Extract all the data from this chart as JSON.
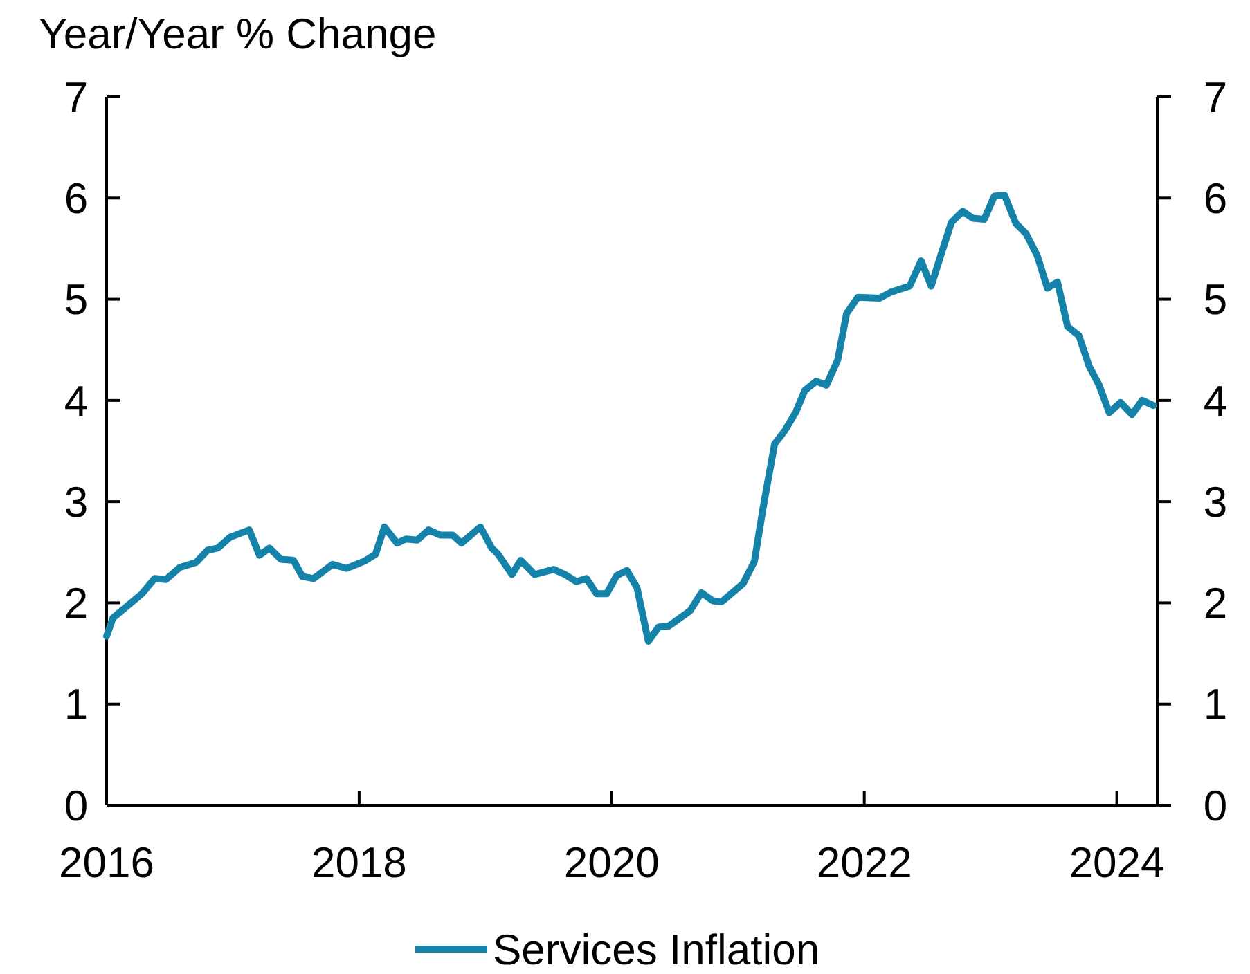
{
  "chart_data": {
    "type": "line",
    "ylabel": "Year/Year % Change",
    "series": [
      {
        "name": "Services Inflation",
        "color": "#1582aa",
        "x": [
          2016.0,
          2016.05,
          2016.28,
          2016.38,
          2016.47,
          2016.58,
          2016.71,
          2016.8,
          2016.88,
          2016.98,
          2017.13,
          2017.21,
          2017.29,
          2017.38,
          2017.48,
          2017.55,
          2017.64,
          2017.79,
          2017.9,
          2018.04,
          2018.13,
          2018.2,
          2018.3,
          2018.37,
          2018.46,
          2018.55,
          2018.64,
          2018.74,
          2018.81,
          2018.96,
          2019.05,
          2019.1,
          2019.21,
          2019.28,
          2019.39,
          2019.54,
          2019.63,
          2019.72,
          2019.8,
          2019.88,
          2019.96,
          2020.04,
          2020.12,
          2020.2,
          2020.29,
          2020.37,
          2020.45,
          2020.62,
          2020.71,
          2020.8,
          2020.87,
          2021.04,
          2021.13,
          2021.2,
          2021.29,
          2021.37,
          2021.46,
          2021.53,
          2021.62,
          2021.7,
          2021.79,
          2021.86,
          2021.95,
          2022.12,
          2022.21,
          2022.36,
          2022.45,
          2022.53,
          2022.61,
          2022.69,
          2022.78,
          2022.86,
          2022.95,
          2023.03,
          2023.11,
          2023.2,
          2023.28,
          2023.37,
          2023.45,
          2023.53,
          2023.61,
          2023.7,
          2023.78,
          2023.86,
          2023.94,
          2024.03,
          2024.12,
          2024.2,
          2024.29
        ],
        "values": [
          1.67,
          1.85,
          2.09,
          2.24,
          2.23,
          2.35,
          2.4,
          2.52,
          2.54,
          2.65,
          2.72,
          2.47,
          2.54,
          2.43,
          2.42,
          2.26,
          2.24,
          2.38,
          2.34,
          2.41,
          2.48,
          2.75,
          2.59,
          2.63,
          2.62,
          2.72,
          2.67,
          2.67,
          2.59,
          2.75,
          2.54,
          2.48,
          2.28,
          2.42,
          2.28,
          2.33,
          2.28,
          2.21,
          2.24,
          2.09,
          2.09,
          2.27,
          2.32,
          2.15,
          1.62,
          1.76,
          1.77,
          1.92,
          2.1,
          2.02,
          2.01,
          2.19,
          2.41,
          2.95,
          3.57,
          3.7,
          3.89,
          4.1,
          4.19,
          4.15,
          4.4,
          4.86,
          5.02,
          5.01,
          5.07,
          5.13,
          5.38,
          5.13,
          5.45,
          5.76,
          5.87,
          5.8,
          5.79,
          6.02,
          6.03,
          5.75,
          5.65,
          5.43,
          5.11,
          5.17,
          4.73,
          4.64,
          4.34,
          4.15,
          3.88,
          3.98,
          3.86,
          4.0,
          3.95
        ]
      }
    ],
    "xlim": [
      2016,
      2024.32
    ],
    "xticks": [
      2016,
      2018,
      2020,
      2022,
      2024
    ],
    "ylim": [
      0,
      7
    ],
    "yticks": [
      0,
      1,
      2,
      3,
      4,
      5,
      6,
      7
    ],
    "y2lim": [
      0,
      7
    ],
    "y2ticks": [
      0,
      1,
      2,
      3,
      4,
      5,
      6,
      7
    ],
    "grid": false,
    "legend": "bottom",
    "line_style": "solid",
    "marker": "none"
  }
}
